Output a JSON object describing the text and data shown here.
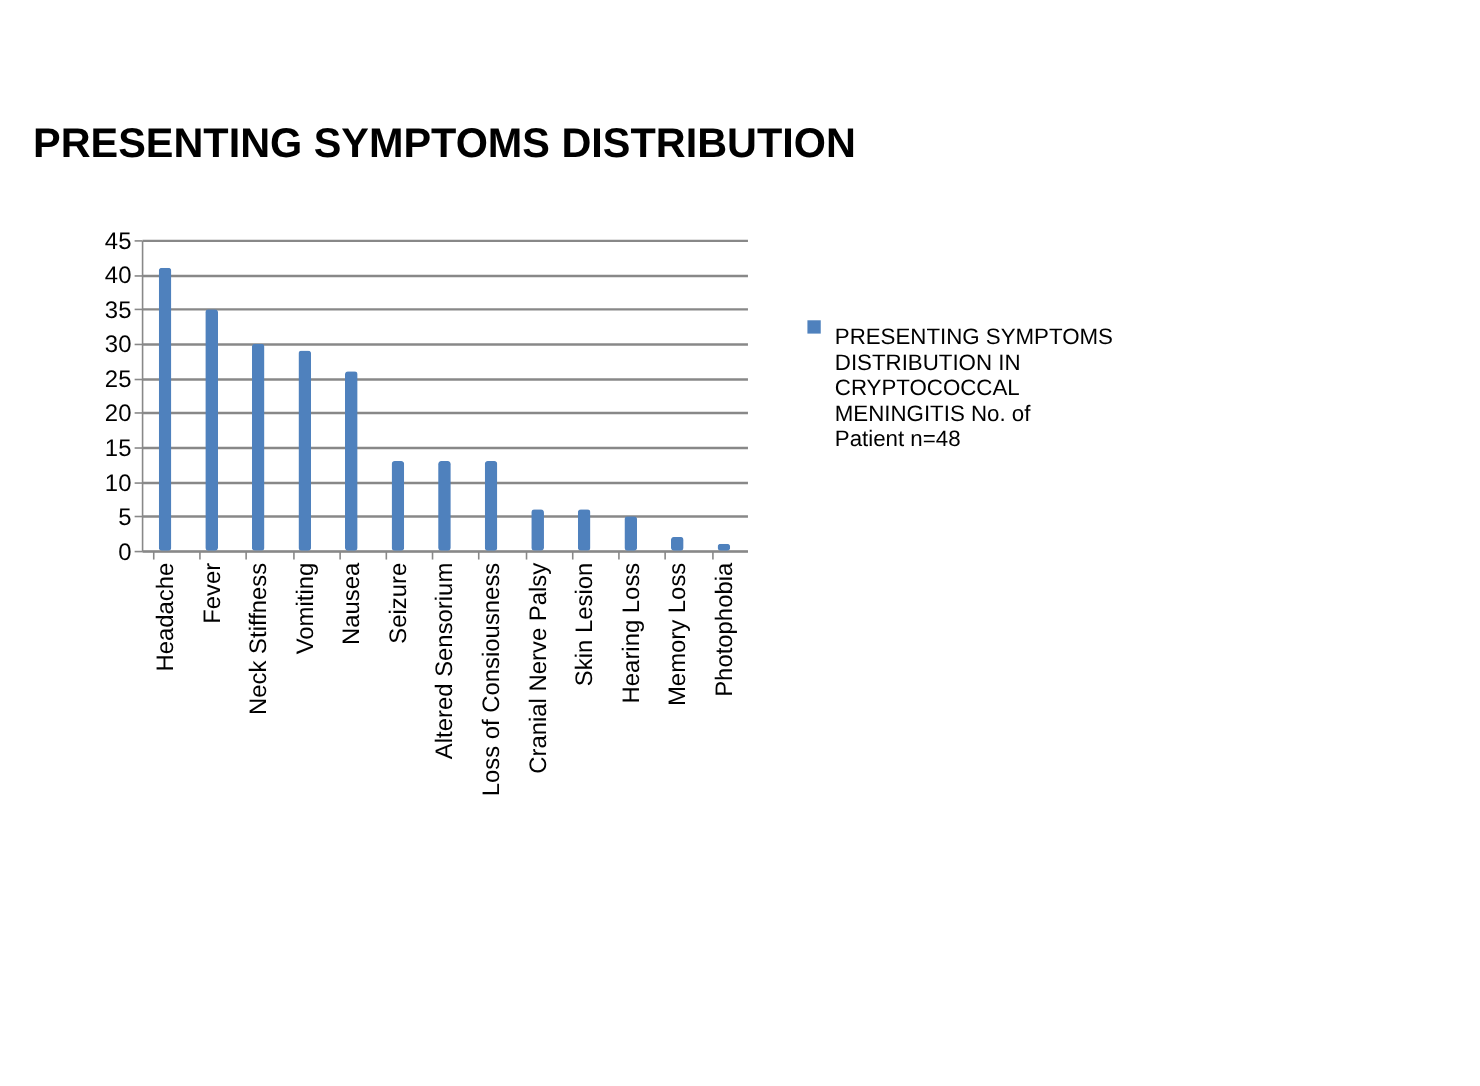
{
  "chart_data": {
    "type": "bar",
    "title": "PRESENTING SYMPTOMS DISTRIBUTION",
    "categories": [
      "Headache",
      "Fever",
      "Neck Stiffness",
      "Vomiting",
      "Nausea",
      "Seizure",
      "Altered Sensorium",
      "Loss of Consiousness",
      "Cranial Nerve Palsy",
      "Skin Lesion",
      "Hearing Loss",
      "Memory Loss",
      "Photophobia"
    ],
    "series": [
      {
        "name": "PRESENTING SYMPTOMS DISTRIBUTION IN CRYPTOCOCCAL MENINGITIS No. of Patient n=48",
        "color": "#4f81bd",
        "values": [
          41,
          35,
          30,
          29,
          26,
          13,
          13,
          13,
          6,
          6,
          5,
          2,
          1
        ]
      }
    ],
    "ylim": [
      0,
      45
    ],
    "yticks": [
      0,
      5,
      10,
      15,
      20,
      25,
      30,
      35,
      40,
      45
    ],
    "grid": "y",
    "legend": "right"
  }
}
